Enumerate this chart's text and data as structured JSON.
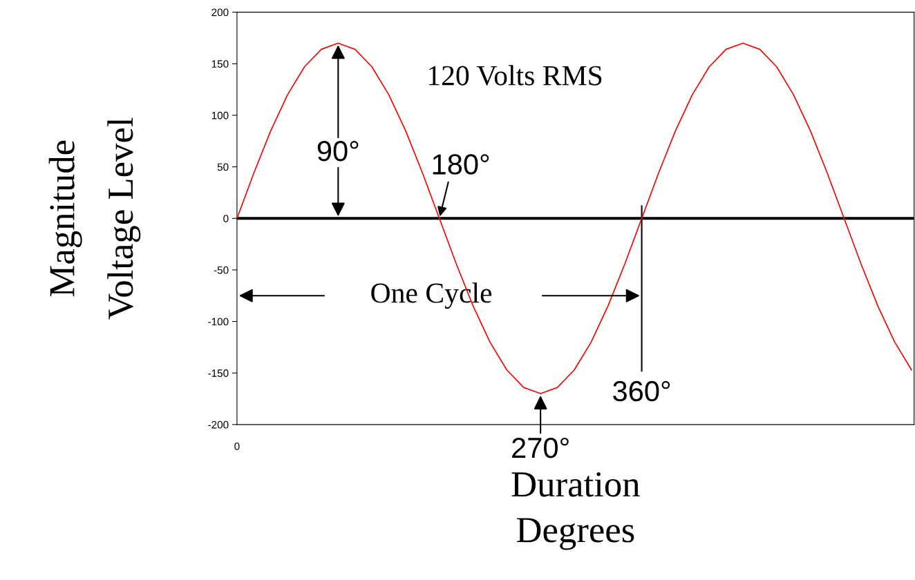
{
  "chart_data": {
    "type": "line",
    "xlabel": "Duration\nDegrees",
    "ylabel": "Magnitude\nVoltage Level",
    "categories": [
      null,
      null,
      null,
      null,
      null,
      null,
      null,
      null,
      null,
      null,
      null,
      null,
      null,
      null,
      null,
      null,
      null,
      null,
      null,
      null,
      null,
      null,
      null,
      null,
      null,
      null,
      null,
      null,
      null,
      null,
      null,
      null,
      null,
      null,
      null,
      null,
      null,
      null,
      null,
      null,
      null
    ],
    "series": [
      {
        "color": "#ff0000",
        "values": [
          0,
          44,
          85,
          120,
          147,
          164,
          170,
          164,
          147,
          120,
          85,
          44,
          0,
          -44,
          -85,
          -120,
          -147,
          -164,
          -170,
          -164,
          -147,
          -120,
          -85,
          -44,
          0,
          44,
          85,
          120,
          147,
          164,
          170,
          164,
          147,
          120,
          85,
          44,
          0,
          -44,
          -85,
          -120,
          -147
        ]
      }
    ],
    "ylim": [
      -200,
      200
    ],
    "yticks": [
      -200,
      -150,
      -100,
      -50,
      0,
      50,
      100,
      150,
      200
    ],
    "grid": false,
    "legend": false,
    "marker": "none",
    "line_style": "solid",
    "ref_lines": [
      {
        "axis": "y",
        "value": 0,
        "color": "#000000",
        "line_style": "solid"
      }
    ],
    "annotations": [
      "120 Volts RMS",
      {
        "text": "90°",
        "y": 170
      },
      {
        "text": "180°",
        "y": 0
      },
      {
        "text": "270°",
        "y": -170
      },
      "360°",
      "One Cycle",
      "0"
    ]
  }
}
